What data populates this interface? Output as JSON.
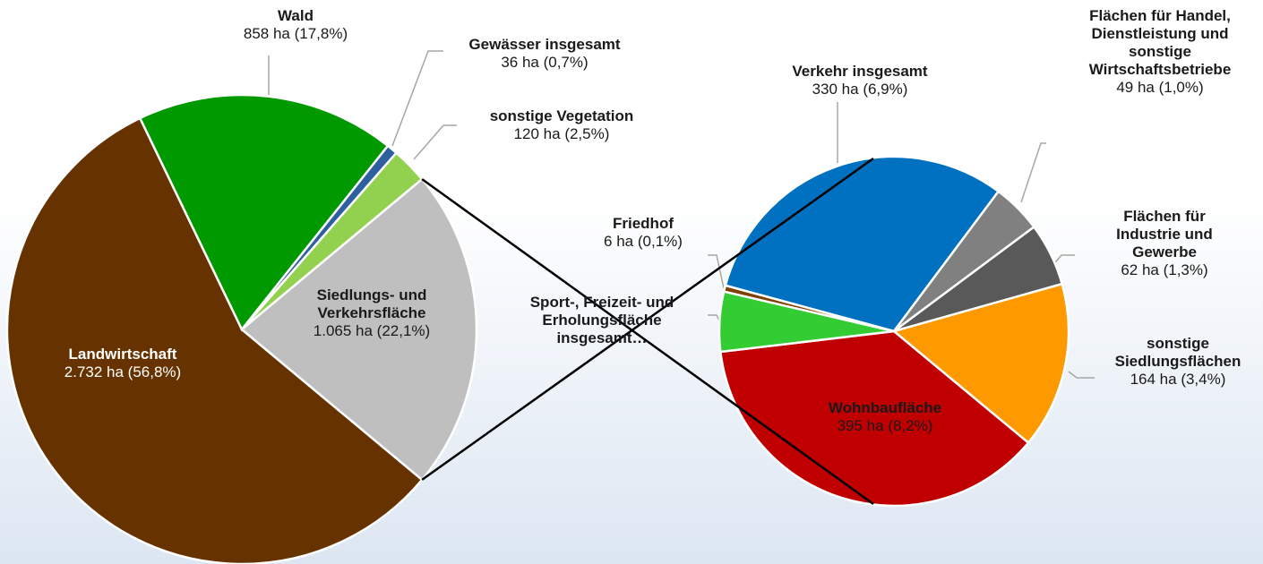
{
  "chart_data": [
    {
      "type": "pie",
      "categories": [
        "Landwirtschaft",
        "Wald",
        "Gewässer insgesamt",
        "sonstige Vegetation",
        "Siedlungs- und Verkehrsfläche"
      ],
      "values": [
        2732,
        858,
        36,
        120,
        1065
      ],
      "value_labels": [
        "2.732 ha (56,8%)",
        "858 ha (17,8%)",
        "36 ha (0,7%)",
        "120 ha (2,5%)",
        "1.065 ha (22,1%)"
      ],
      "colors": [
        "#663300",
        "#009900",
        "#2e5f9e",
        "#92d050",
        "#bfbfbf"
      ]
    },
    {
      "type": "pie",
      "categories": [
        "Verkehr insgesamt",
        "Flächen für Handel, Dienstleistung und sonstige Wirtschaftsbetriebe",
        "Flächen für Industrie und Gewerbe",
        "sonstige Siedlungsflächen",
        "Wohnbaufläche",
        "Sport-, Freizeit- und Erholungsfläche insgesamt…",
        "Friedhof"
      ],
      "values": [
        330,
        49,
        62,
        164,
        395,
        59,
        6
      ],
      "value_labels": [
        "330 ha (6,9%)",
        "49 ha (1,0%)",
        "62 ha (1,3%)",
        "164 ha (3,4%)",
        "395 ha (8,2%)",
        null,
        "6 ha (0,1%)"
      ],
      "colors": [
        "#0070c0",
        "#808080",
        "#595959",
        "#ff9900",
        "#c00000",
        "#33cc33",
        "#7f3f00"
      ]
    }
  ]
}
